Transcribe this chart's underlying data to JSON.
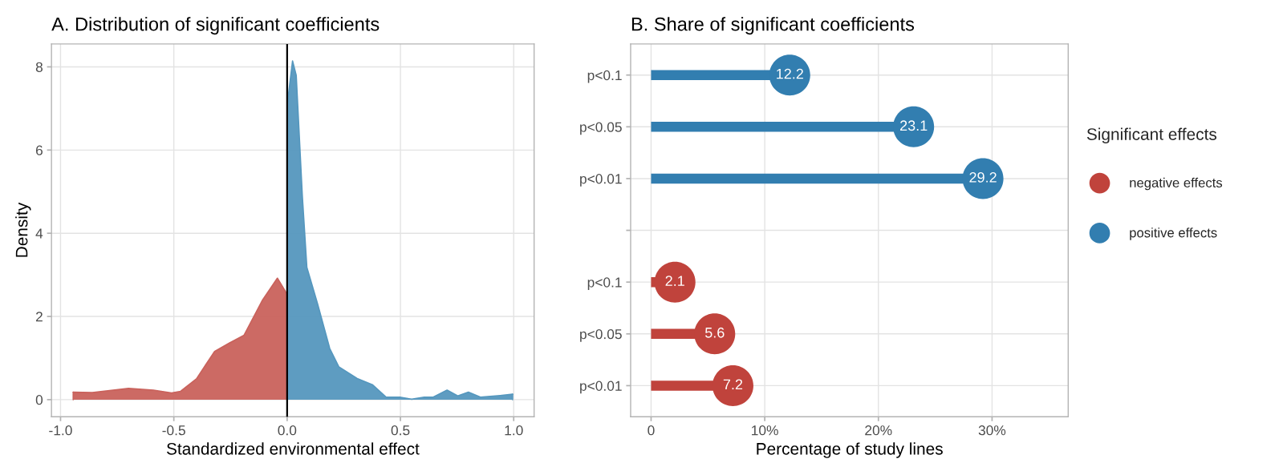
{
  "chart_data": [
    {
      "type": "area",
      "title": "A. Distribution of significant coefficients",
      "xlabel": "Standardized environmental effect",
      "ylabel": "Density",
      "xlim": [
        -1.04,
        1.09
      ],
      "xticks": [
        {
          "value": -1.0,
          "label": "-1.0"
        },
        {
          "value": -0.5,
          "label": "-0.5"
        },
        {
          "value": 0.0,
          "label": "0.0"
        },
        {
          "value": 0.5,
          "label": "0.5"
        },
        {
          "value": 1.0,
          "label": "1.0"
        }
      ],
      "ylim": [
        -0.41,
        8.55
      ],
      "yticks": [
        0,
        2,
        4,
        6,
        8
      ],
      "grid": true,
      "ref_lines": [
        {
          "axis": "x",
          "value": 0,
          "color": "#000000"
        }
      ],
      "series": [
        {
          "color": "#c9625c",
          "x": [
            -0.944,
            -0.86,
            -0.7,
            -0.59,
            -0.51,
            -0.47,
            -0.4,
            -0.32,
            -0.255,
            -0.19,
            -0.11,
            -0.043,
            0.0
          ],
          "values": [
            0.18,
            0.17,
            0.27,
            0.23,
            0.16,
            0.2,
            0.5,
            1.16,
            1.36,
            1.55,
            2.38,
            2.92,
            2.53
          ]
        },
        {
          "color": "#5597be",
          "x": [
            0.0,
            0.024,
            0.04,
            0.067,
            0.087,
            0.134,
            0.188,
            0.228,
            0.309,
            0.376,
            0.437,
            0.497,
            0.55,
            0.605,
            0.645,
            0.706,
            0.753,
            0.8,
            0.853,
            0.94,
            0.995
          ],
          "values": [
            7.07,
            8.14,
            7.8,
            4.9,
            3.18,
            2.31,
            1.23,
            0.79,
            0.51,
            0.36,
            0.06,
            0.06,
            0.01,
            0.06,
            0.06,
            0.23,
            0.09,
            0.18,
            0.06,
            0.1,
            0.13
          ]
        }
      ]
    },
    {
      "type": "lollipop",
      "orientation": "horizontal",
      "title": "B. Share of significant coefficients",
      "xlabel": "Percentage of study lines",
      "categories": [
        "p<0.1",
        "p<0.05",
        "p<0.01",
        null,
        "p<0.1",
        "p<0.05",
        "p<0.01"
      ],
      "xlim": [
        -1.8,
        36.7
      ],
      "xticks": [
        {
          "value": 0,
          "label": "0"
        },
        {
          "value": 10,
          "label": "10%"
        },
        {
          "value": 20,
          "label": "20%"
        },
        {
          "value": 30,
          "label": "30%"
        }
      ],
      "grid": true,
      "legend": "right",
      "legend_title": "Significant effects",
      "data_labels": true,
      "series": [
        {
          "name": "negative effects",
          "color": "#c0433c",
          "values": [
            null,
            null,
            null,
            null,
            2.1,
            5.6,
            7.2
          ]
        },
        {
          "name": "positive effects",
          "color": "#327eb0",
          "values": [
            12.2,
            23.1,
            29.2,
            null,
            null,
            null,
            null
          ]
        }
      ]
    }
  ]
}
